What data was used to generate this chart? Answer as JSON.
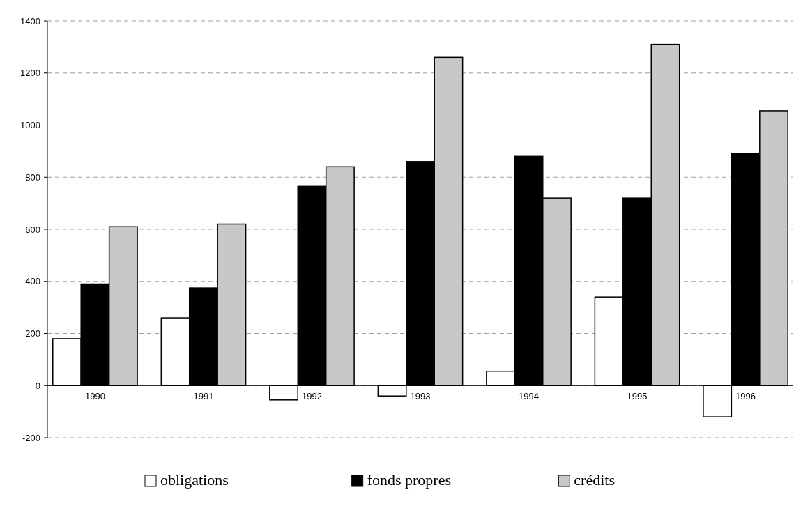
{
  "chart_data": {
    "type": "bar",
    "categories": [
      "1990",
      "1991",
      "1992",
      "1993",
      "1994",
      "1995",
      "1996"
    ],
    "series": [
      {
        "name": "obligations",
        "color": "#ffffff",
        "values": [
          180,
          260,
          -55,
          -40,
          55,
          340,
          -120
        ]
      },
      {
        "name": "fonds propres",
        "color": "#000000",
        "values": [
          390,
          375,
          765,
          860,
          880,
          720,
          890
        ]
      },
      {
        "name": "crédits",
        "color": "#c8c8c8",
        "values": [
          610,
          620,
          840,
          1260,
          720,
          1310,
          1055
        ]
      }
    ],
    "ylim": [
      -200,
      1400
    ],
    "yticks": [
      -200,
      0,
      200,
      400,
      600,
      800,
      1000,
      1200,
      1400
    ],
    "grid": "y",
    "legend": "bottom"
  }
}
